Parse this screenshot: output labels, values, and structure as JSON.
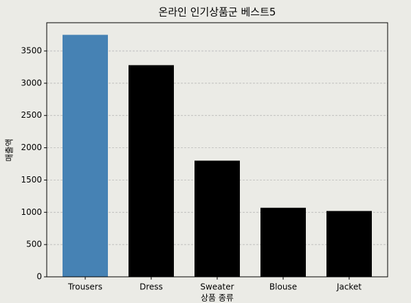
{
  "chart_data": {
    "type": "bar",
    "title": "온라인 인기상품군 베스트5",
    "x_label": "상품 종류",
    "y_label": "매출액",
    "categories": [
      "Trousers",
      "Dress",
      "Sweater",
      "Blouse",
      "Jacket"
    ],
    "values": [
      3750,
      3280,
      1800,
      1070,
      1020
    ],
    "colors": [
      "#4682b4",
      "#000000",
      "#000000",
      "#000000",
      "#000000"
    ],
    "ylim": [
      0,
      3937.5
    ],
    "yticks": [
      0,
      500,
      1000,
      1500,
      2000,
      2500,
      3000,
      3500
    ],
    "grid": true
  }
}
